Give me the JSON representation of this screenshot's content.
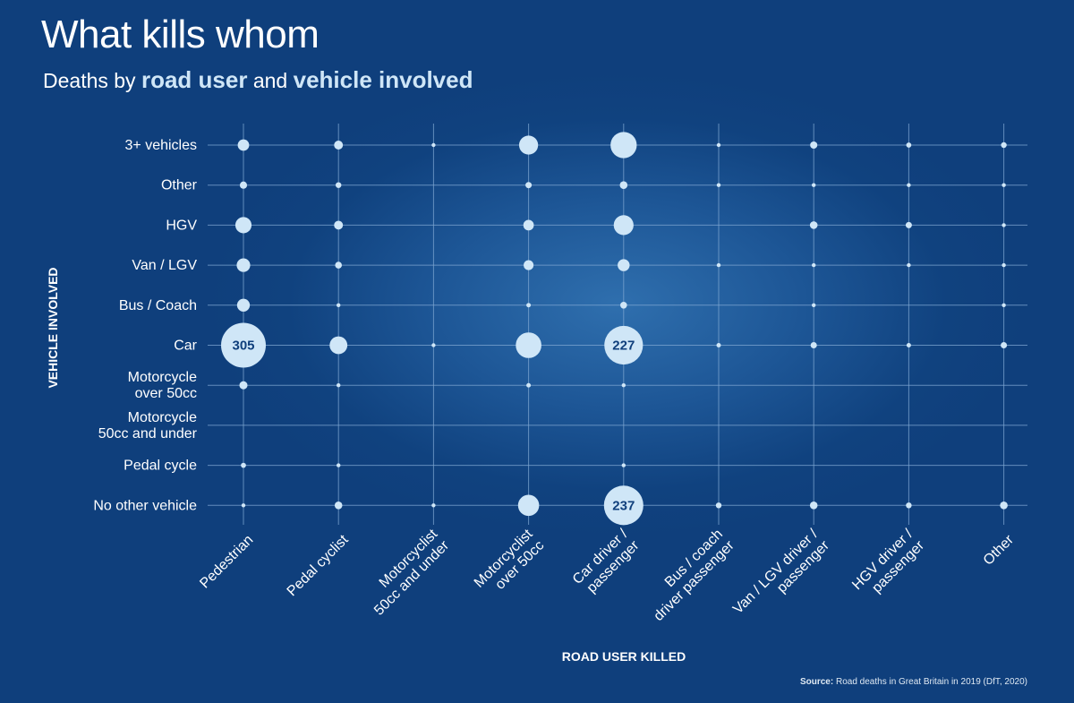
{
  "title": "What kills whom",
  "subtitle": {
    "prefix": "Deaths by ",
    "bold1": "road user",
    "middle": " and ",
    "bold2": "vehicle involved"
  },
  "source": {
    "label": "Source:",
    "text": " Road deaths in Great Britain in 2019 (DfT, 2020)"
  },
  "colors": {
    "background": "#0f3f7c",
    "bubble": "#cfe6f7",
    "grid": "#7fa7d2",
    "bubble_label": "#0f3f7c"
  },
  "chart_data": {
    "type": "scatter",
    "xlabel": "ROAD USER KILLED",
    "ylabel": "VEHICLE INVOLVED",
    "x_categories": [
      [
        "Pedestrian"
      ],
      [
        "Pedal cyclist"
      ],
      [
        "Motorcyclist",
        "50cc and under"
      ],
      [
        "Motorcyclist",
        "over 50cc"
      ],
      [
        "Car driver /",
        "passenger"
      ],
      [
        "Bus / coach",
        "driver passenger"
      ],
      [
        "Van / LGV driver /",
        "passenger"
      ],
      [
        "HGV driver /",
        "passenger"
      ],
      [
        "Other"
      ]
    ],
    "y_categories": [
      [
        "3+ vehicles"
      ],
      [
        "Other"
      ],
      [
        "HGV"
      ],
      [
        "Van / LGV"
      ],
      [
        "Bus / Coach"
      ],
      [
        "Car"
      ],
      [
        "Motorcycle",
        "over 50cc"
      ],
      [
        "Motorcycle",
        "50cc and under"
      ],
      [
        "Pedal cycle"
      ],
      [
        "No other vehicle"
      ]
    ],
    "grid": true,
    "values": [
      [
        20,
        12,
        2,
        55,
        105,
        2,
        8,
        4,
        5
      ],
      [
        8,
        5,
        0,
        6,
        9,
        1,
        1,
        1,
        1
      ],
      [
        40,
        12,
        0,
        17,
        60,
        0,
        9,
        6,
        2
      ],
      [
        28,
        7,
        0,
        15,
        22,
        1,
        2,
        1,
        1
      ],
      [
        25,
        1,
        0,
        3,
        7,
        0,
        1,
        0,
        1
      ],
      [
        305,
        48,
        2,
        100,
        227,
        3,
        6,
        3,
        6
      ],
      [
        10,
        1,
        0,
        3,
        2,
        0,
        0,
        0,
        0
      ],
      [
        0,
        0,
        0,
        0,
        0,
        0,
        0,
        0,
        0
      ],
      [
        4,
        1,
        0,
        0,
        1,
        0,
        0,
        0,
        0
      ],
      [
        1,
        9,
        2,
        68,
        237,
        5,
        9,
        5,
        9
      ]
    ],
    "labels": [
      {
        "row": 5,
        "col": 0,
        "text": "305"
      },
      {
        "row": 5,
        "col": 4,
        "text": "227"
      },
      {
        "row": 9,
        "col": 4,
        "text": "237"
      }
    ]
  }
}
